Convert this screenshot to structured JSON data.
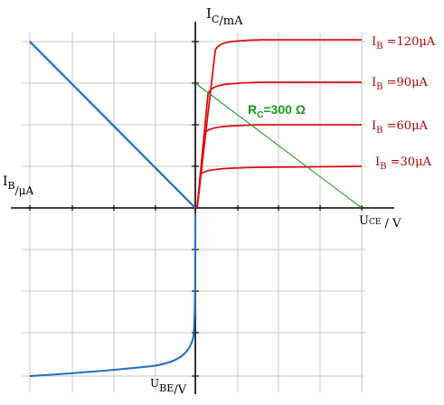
{
  "axes": {
    "ic": {
      "main": "I",
      "sub": "C",
      "unit": "/mA"
    },
    "ib": {
      "main": "I",
      "sub": "B",
      "unit": "/μA"
    },
    "uce": {
      "main": "U",
      "sub": "CE",
      "unit": "/ V"
    },
    "ube": {
      "main": "U",
      "sub": "BE",
      "unit": "/V"
    }
  },
  "curves": [
    {
      "name": "IB =120μA",
      "main": "I",
      "sub": "B",
      "rest": " =120μA"
    },
    {
      "name": "IB =90μA",
      "main": "I",
      "sub": "B",
      "rest": " =90μA"
    },
    {
      "name": "IB =60μA",
      "main": "I",
      "sub": "B",
      "rest": " =60μA"
    },
    {
      "name": "IB =30μA",
      "main": "I",
      "sub": "B",
      "rest": " =30μA"
    }
  ],
  "load_line": {
    "main": "R",
    "sub": "C",
    "rest": "=300 Ω"
  },
  "colors": {
    "output_curves": "#e01010",
    "input_curves": "#1f6fbf",
    "load_line": "#1a9a1a",
    "grid": "#c8c8c8",
    "axes": "#000000"
  }
}
